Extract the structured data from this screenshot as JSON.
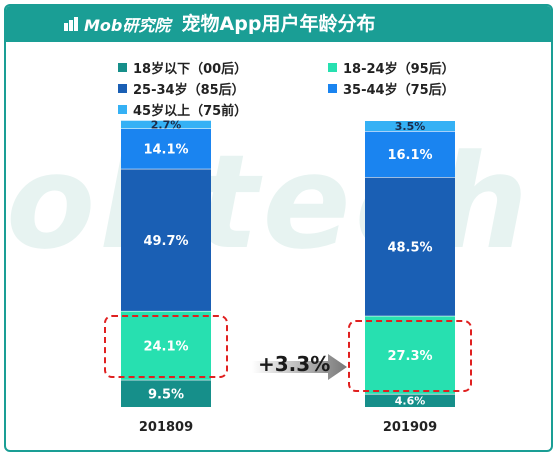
{
  "header": {
    "logo_text": "Mob研究院",
    "title": "宠物App用户年龄分布"
  },
  "watermark": "obtech",
  "colors": {
    "header_bg": "#1a9e95",
    "highlight_border": "#e02020"
  },
  "annotation": {
    "growth": "+3.3%"
  },
  "chart_data": {
    "type": "bar",
    "stacked": true,
    "title": "宠物App用户年龄分布",
    "categories": [
      "201809",
      "201909"
    ],
    "ylim": [
      0,
      100
    ],
    "series": [
      {
        "name": "18岁以下（00后）",
        "color": "#168f8a",
        "values": [
          9.5,
          4.6
        ]
      },
      {
        "name": "18-24岁（95后）",
        "color": "#27e0b0",
        "values": [
          24.1,
          27.3
        ]
      },
      {
        "name": "25-34岁（85后）",
        "color": "#1a5fb4",
        "values": [
          49.7,
          48.5
        ]
      },
      {
        "name": "35-44岁（75后）",
        "color": "#1a84f0",
        "values": [
          14.1,
          16.1
        ]
      },
      {
        "name": "45岁以上（75前）",
        "color": "#35b1f5",
        "values": [
          2.7,
          3.5
        ]
      }
    ],
    "data_labels": [
      [
        "9.5%",
        "24.1%",
        "49.7%",
        "14.1%",
        "2.7%"
      ],
      [
        "4.6%",
        "27.3%",
        "48.5%",
        "16.1%",
        "3.5%"
      ]
    ],
    "highlighted_series": "18-24岁（95后）",
    "legend_position": "top"
  }
}
